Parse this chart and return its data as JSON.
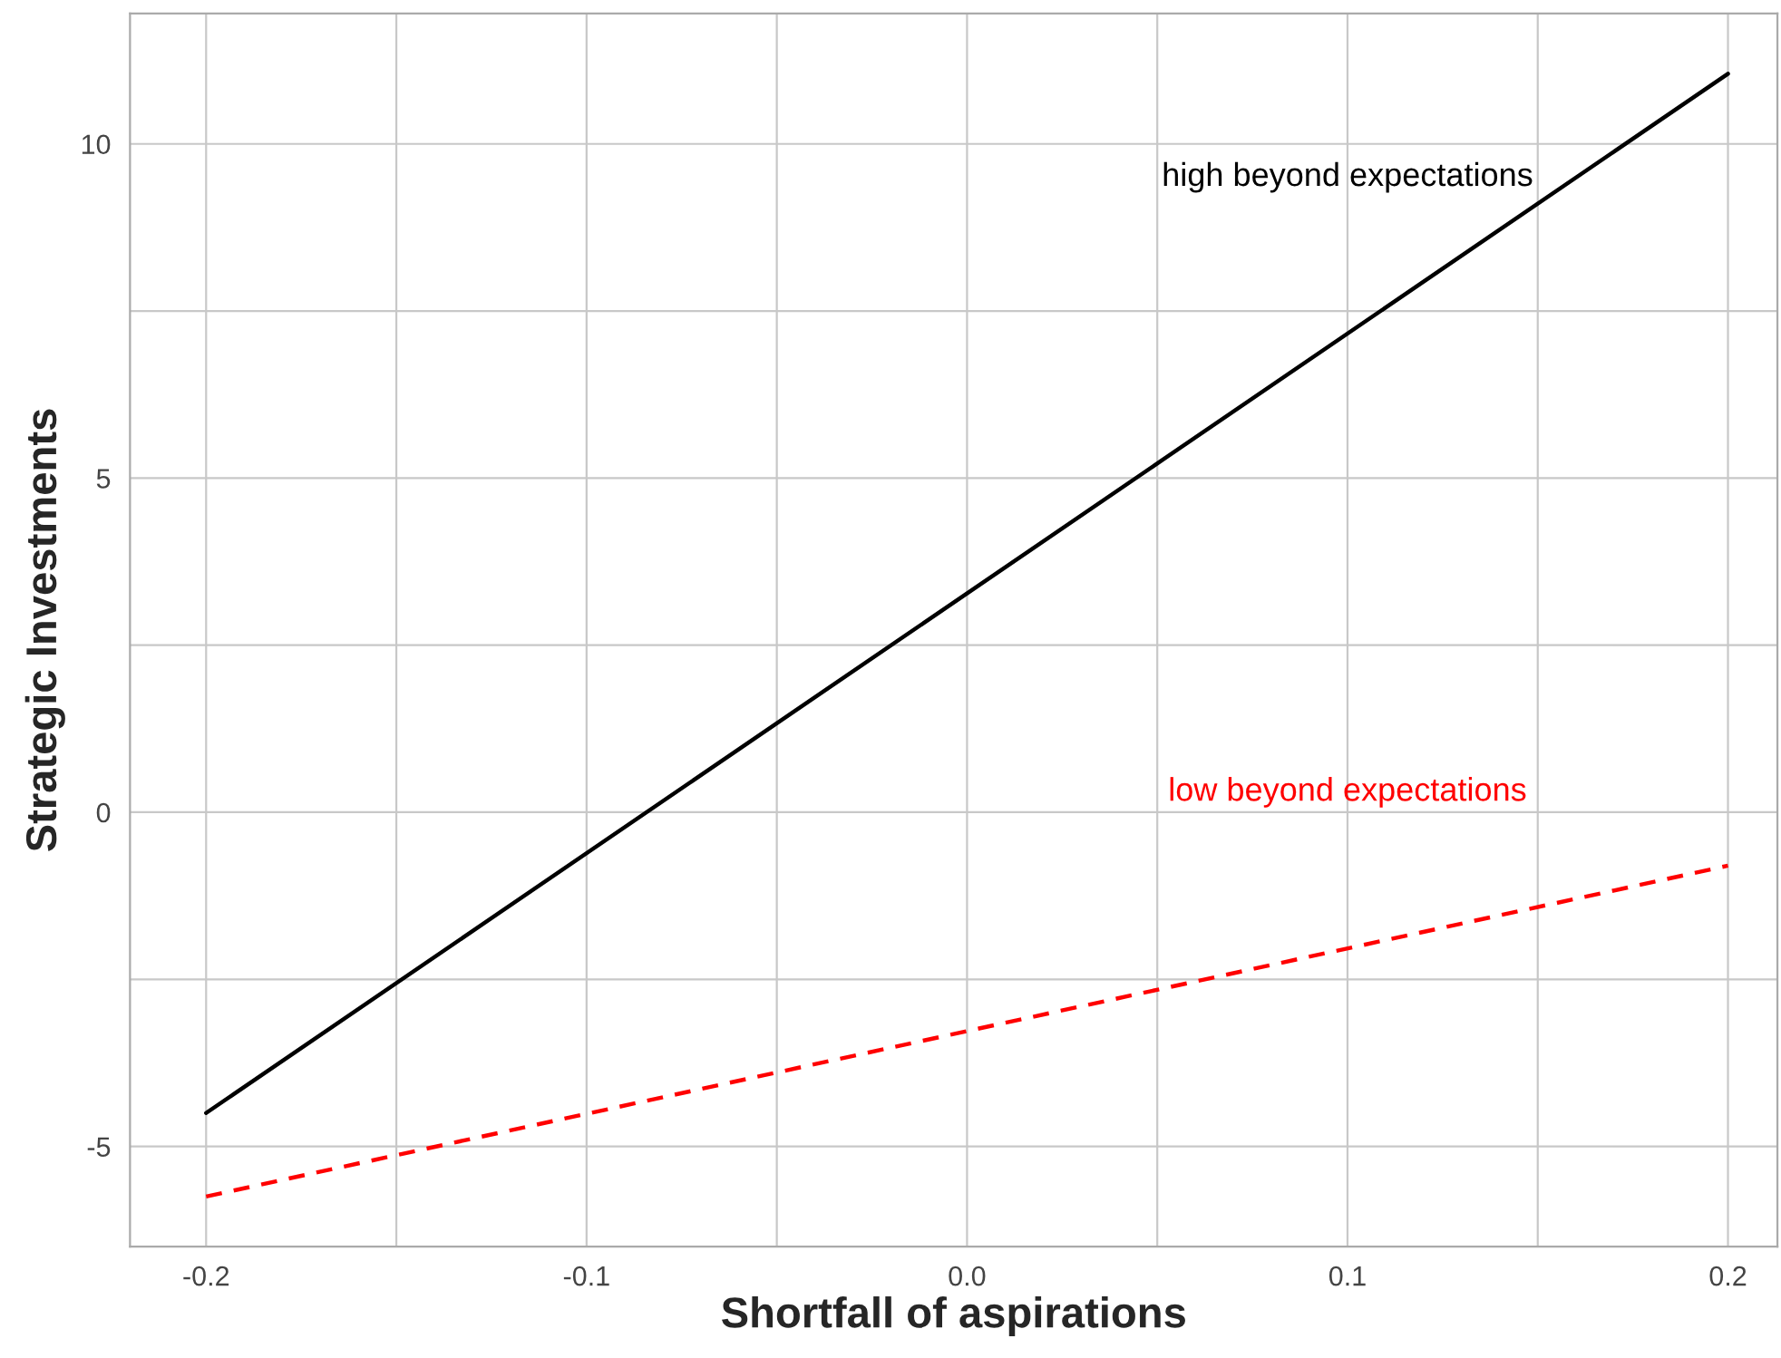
{
  "chart_data": {
    "type": "line",
    "xlabel": "Shortfall of aspirations",
    "ylabel": "Strategic Investments",
    "x": [
      -0.2,
      0.2
    ],
    "series": [
      {
        "name": "high beyond expectations",
        "color": "#000000",
        "values": [
          -4.5,
          11.05
        ],
        "line_style": "solid"
      },
      {
        "name": "low beyond expectations",
        "color": "#ff0000",
        "values": [
          -5.75,
          -0.8
        ],
        "line_style": "dashed"
      }
    ],
    "xlim": [
      -0.22,
      0.213
    ],
    "ylim": [
      -6.5,
      11.95
    ],
    "xticks": [
      -0.2,
      -0.1,
      {
        "value": 0,
        "label": "0.0"
      },
      0.1,
      0.2
    ],
    "yticks": [
      -5,
      0,
      5,
      10
    ],
    "grid": true,
    "marker": "none"
  }
}
